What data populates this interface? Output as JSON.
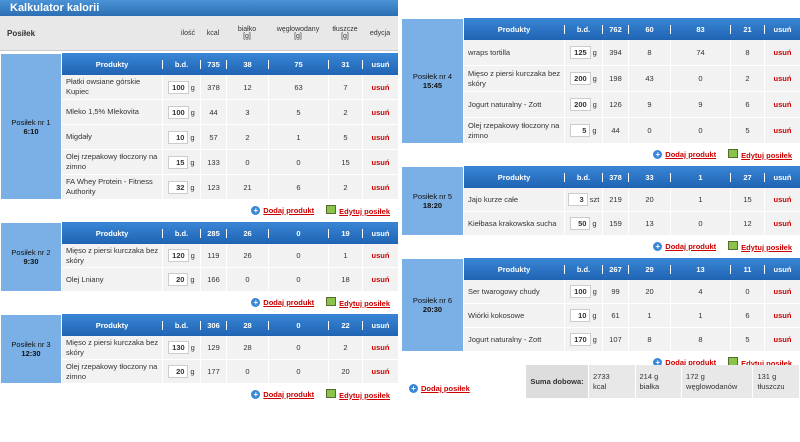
{
  "app_title": "Kalkulator kalorii",
  "columns": {
    "meal": "Posiłek",
    "qty": "ilość",
    "kcal": "kcal",
    "protein": "białko\n[g]",
    "carbs": "węglowodany\n[g]",
    "fat": "tłuszcze\n[g]",
    "edit": "edycja"
  },
  "labels": {
    "products": "Produkty",
    "bd": "b.d.",
    "delete": "usuń",
    "add_product": "Dodaj produkt",
    "edit_meal": "Edytuj posiłek",
    "add_meal": "Dodaj posiłek",
    "unit_g": "g",
    "unit_szt": "szt"
  },
  "meals": [
    {
      "name": "Posiłek nr 1",
      "time": "6:10",
      "totals": {
        "kcal": "735",
        "p": "38",
        "c": "75",
        "f": "31"
      },
      "products": [
        {
          "name": "Płatki owsiane górskie Kupiec",
          "qty": "100",
          "unit": "g",
          "kcal": "378",
          "p": "12",
          "c": "63",
          "f": "7"
        },
        {
          "name": "Mleko 1,5% Mlekovita",
          "qty": "100",
          "unit": "g",
          "kcal": "44",
          "p": "3",
          "c": "5",
          "f": "2"
        },
        {
          "name": "Migdały",
          "qty": "10",
          "unit": "g",
          "kcal": "57",
          "p": "2",
          "c": "1",
          "f": "5"
        },
        {
          "name": "Olej rzepakowy tłoczony na zimno",
          "qty": "15",
          "unit": "g",
          "kcal": "133",
          "p": "0",
          "c": "0",
          "f": "15"
        },
        {
          "name": "FA Whey Protein - Fitness Authority",
          "qty": "32",
          "unit": "g",
          "kcal": "123",
          "p": "21",
          "c": "6",
          "f": "2"
        }
      ]
    },
    {
      "name": "Posiłek nr 2",
      "time": "9:30",
      "totals": {
        "kcal": "285",
        "p": "26",
        "c": "0",
        "f": "19"
      },
      "products": [
        {
          "name": "Mięso z piersi kurczaka bez skóry",
          "qty": "120",
          "unit": "g",
          "kcal": "119",
          "p": "26",
          "c": "0",
          "f": "1"
        },
        {
          "name": "Olej Lniany",
          "qty": "20",
          "unit": "g",
          "kcal": "166",
          "p": "0",
          "c": "0",
          "f": "18"
        }
      ]
    },
    {
      "name": "Posiłek nr 3",
      "time": "12:30",
      "totals": {
        "kcal": "306",
        "p": "28",
        "c": "0",
        "f": "22"
      },
      "products": [
        {
          "name": "Mięso z piersi kurczaka bez skóry",
          "qty": "130",
          "unit": "g",
          "kcal": "129",
          "p": "28",
          "c": "0",
          "f": "2"
        },
        {
          "name": "Olej rzepakowy tłoczony na zimno",
          "qty": "20",
          "unit": "g",
          "kcal": "177",
          "p": "0",
          "c": "0",
          "f": "20"
        }
      ]
    },
    {
      "name": "Posiłek nr 4",
      "time": "15:45",
      "totals": {
        "kcal": "762",
        "p": "60",
        "c": "83",
        "f": "21"
      },
      "products": [
        {
          "name": "wraps tortilla",
          "qty": "125",
          "unit": "g",
          "kcal": "394",
          "p": "8",
          "c": "74",
          "f": "8"
        },
        {
          "name": "Mięso z piersi kurczaka bez skóry",
          "qty": "200",
          "unit": "g",
          "kcal": "198",
          "p": "43",
          "c": "0",
          "f": "2"
        },
        {
          "name": "Jogurt naturalny - Zott",
          "qty": "200",
          "unit": "g",
          "kcal": "126",
          "p": "9",
          "c": "9",
          "f": "6"
        },
        {
          "name": "Olej rzepakowy tłoczony na zimno",
          "qty": "5",
          "unit": "g",
          "kcal": "44",
          "p": "0",
          "c": "0",
          "f": "5"
        }
      ]
    },
    {
      "name": "Posiłek nr 5",
      "time": "18:20",
      "totals": {
        "kcal": "378",
        "p": "33",
        "c": "1",
        "f": "27"
      },
      "products": [
        {
          "name": "Jajo kurze całe",
          "qty": "3",
          "unit": "szt",
          "kcal": "219",
          "p": "20",
          "c": "1",
          "f": "15"
        },
        {
          "name": "Kiełbasa krakowska sucha",
          "qty": "50",
          "unit": "g",
          "kcal": "159",
          "p": "13",
          "c": "0",
          "f": "12"
        }
      ]
    },
    {
      "name": "Posiłek nr 6",
      "time": "20:30",
      "totals": {
        "kcal": "267",
        "p": "29",
        "c": "13",
        "f": "11"
      },
      "products": [
        {
          "name": "Ser twarogowy chudy",
          "qty": "100",
          "unit": "g",
          "kcal": "99",
          "p": "20",
          "c": "4",
          "f": "0"
        },
        {
          "name": "Wiórki kokosowe",
          "qty": "10",
          "unit": "g",
          "kcal": "61",
          "p": "1",
          "c": "1",
          "f": "6"
        },
        {
          "name": "Jogurt naturalny - Zott",
          "qty": "170",
          "unit": "g",
          "kcal": "107",
          "p": "8",
          "c": "8",
          "f": "5"
        }
      ]
    }
  ],
  "summary": {
    "label": "Suma dobowa:",
    "kcal": "2733",
    "kcal_u": "kcal",
    "p": "214 g",
    "p_u": "białka",
    "c": "172 g",
    "c_u": "węglowodanów",
    "f": "131 g",
    "f_u": "tłuszczu"
  }
}
